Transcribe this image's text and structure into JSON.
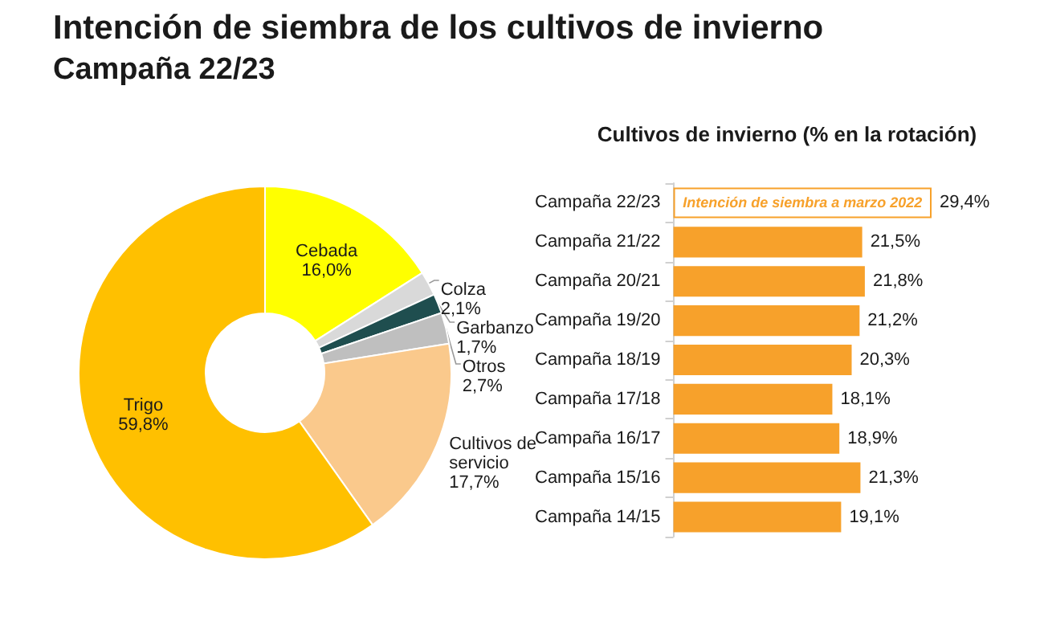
{
  "chart_data": [
    {
      "type": "donut",
      "title": "Intención de siembra de los cultivos de invierno",
      "subtitle": "Campaña 22/23",
      "categories": [
        "Cebada",
        "Colza",
        "Garbanzo",
        "Otros",
        "Cultivos de servicio",
        "Trigo"
      ],
      "values": [
        16.0,
        2.1,
        1.7,
        2.7,
        17.7,
        59.8
      ],
      "value_labels": [
        "16,0%",
        "2,1%",
        "1,7%",
        "2,7%",
        "17,7%",
        "59,8%"
      ],
      "colors": [
        "#ffff00",
        "#d9d9d9",
        "#1f4e4f",
        "#bfbfbf",
        "#fac98c",
        "#ffc000"
      ],
      "legend": false
    },
    {
      "type": "bar",
      "orientation": "horizontal",
      "title": "Cultivos de invierno (% en la rotación)",
      "categories": [
        "Campaña 22/23",
        "Campaña 21/22",
        "Campaña 20/21",
        "Campaña 19/20",
        "Campaña 18/19",
        "Campaña 17/18",
        "Campaña 16/17",
        "Campaña 15/16",
        "Campaña 14/15"
      ],
      "values": [
        29.4,
        21.5,
        21.8,
        21.2,
        20.3,
        18.1,
        18.9,
        21.3,
        19.1
      ],
      "value_labels": [
        "29,4%",
        "21,5%",
        "21,8%",
        "21,2%",
        "20,3%",
        "18,1%",
        "18,9%",
        "21,3%",
        "19,1%"
      ],
      "color": "#f7a12b",
      "colors": [
        "#ffffff",
        "#f7a12b",
        "#f7a12b",
        "#f7a12b",
        "#f7a12b",
        "#f7a12b",
        "#f7a12b",
        "#f7a12b",
        "#f7a12b"
      ],
      "annotations": [
        "Intención de siembra a marzo 2022"
      ],
      "legend": false
    }
  ]
}
